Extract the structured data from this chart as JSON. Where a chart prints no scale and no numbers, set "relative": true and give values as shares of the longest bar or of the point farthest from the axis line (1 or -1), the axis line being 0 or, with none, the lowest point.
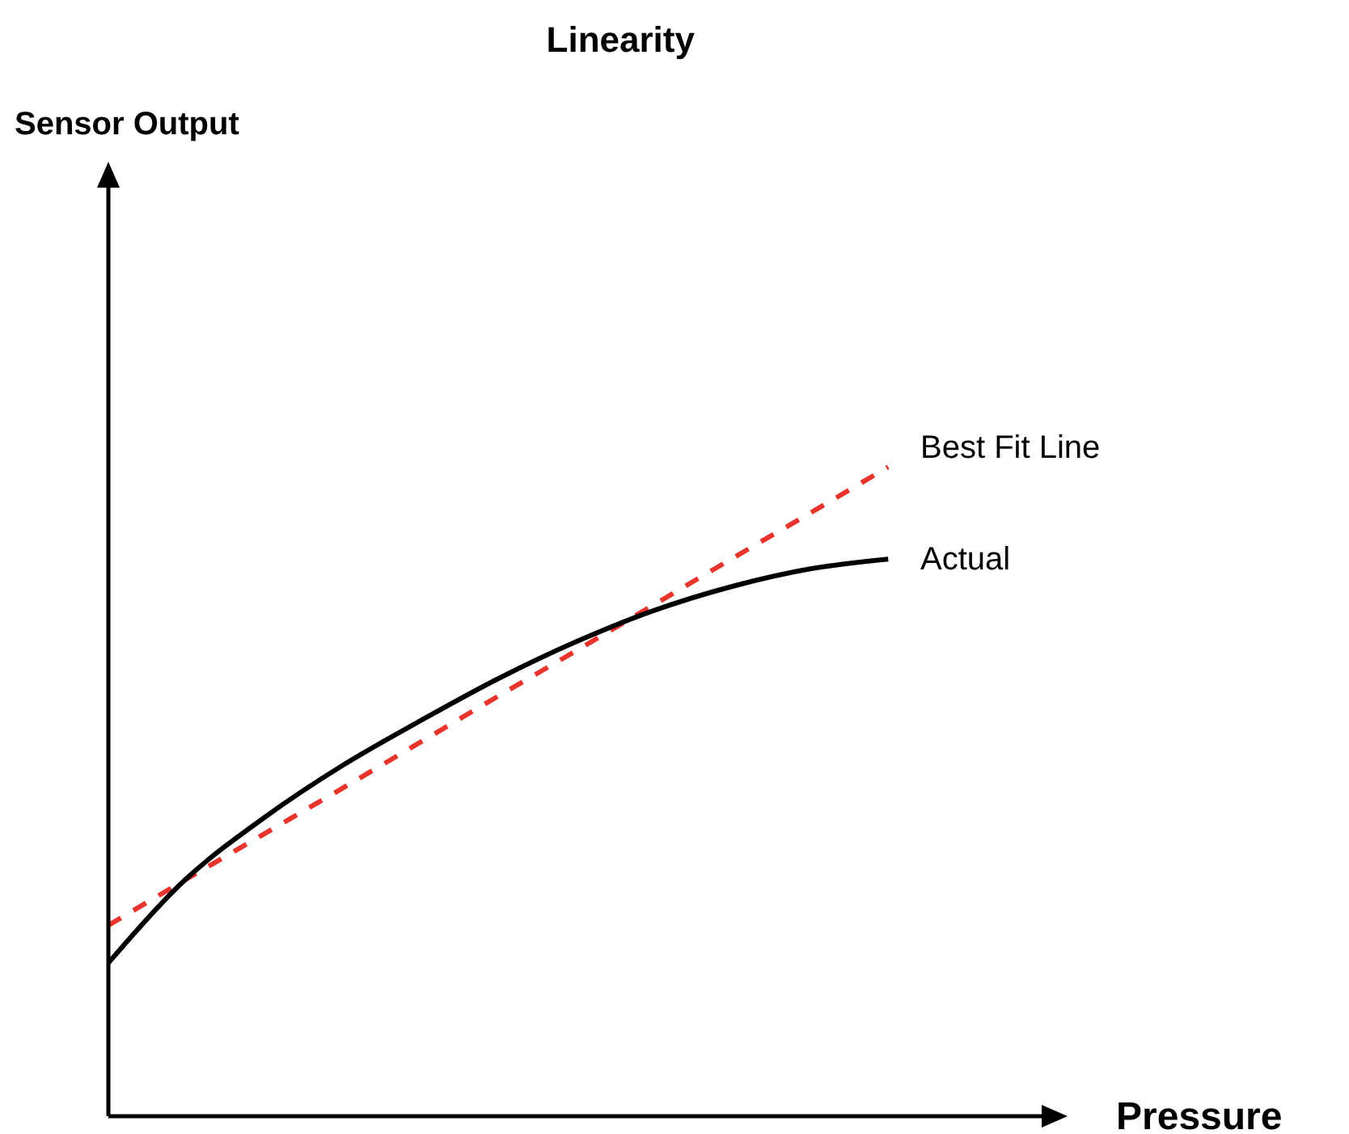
{
  "chart_data": {
    "type": "line",
    "title": "Linearity",
    "xlabel": "Pressure",
    "annotations": [
      "Sensor Output"
    ],
    "relative": true,
    "categories": [
      null,
      null,
      null,
      null,
      null,
      null,
      null,
      null,
      null,
      null,
      null
    ],
    "series": [
      {
        "name": "Best Fit Line",
        "color": "#e8342a",
        "line_style": "dashed",
        "values": [
          0.294,
          0.365,
          0.435,
          0.505,
          0.576,
          0.647,
          0.717,
          0.788,
          0.859,
          0.929,
          1
        ]
      },
      {
        "name": "Actual",
        "color": "#000000",
        "line_style": "solid",
        "values": [
          0.236,
          0.366,
          0.46,
          0.54,
          0.609,
          0.674,
          0.731,
          0.779,
          0.816,
          0.843,
          0.858
        ]
      }
    ]
  }
}
